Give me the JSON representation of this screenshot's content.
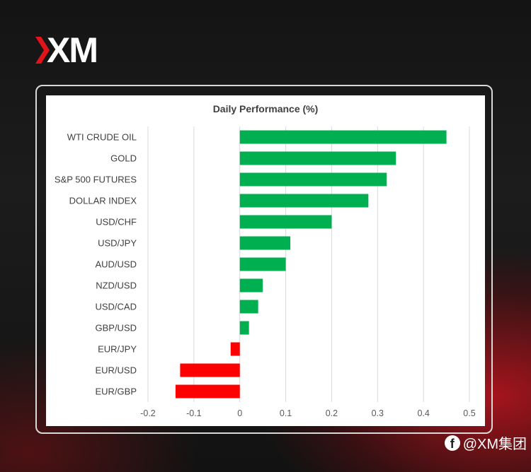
{
  "brand": {
    "logo_text": "XM",
    "handle": "@XM集团"
  },
  "icons": {
    "logo_mark": "xm-logo-icon",
    "social": "facebook-icon"
  },
  "colors": {
    "positive": "#00b050",
    "negative": "#ff0000"
  },
  "chart_data": {
    "type": "bar",
    "orientation": "horizontal",
    "title": "Daily Performance (%)",
    "categories": [
      "WTI CRUDE OIL",
      "GOLD",
      "S&P 500 FUTURES",
      "DOLLAR INDEX",
      "USD/CHF",
      "USD/JPY",
      "AUD/USD",
      "NZD/USD",
      "USD/CAD",
      "GBP/USD",
      "EUR/JPY",
      "EUR/USD",
      "EUR/GBP"
    ],
    "values": [
      0.45,
      0.34,
      0.32,
      0.28,
      0.2,
      0.11,
      0.1,
      0.05,
      0.04,
      0.02,
      -0.02,
      -0.13,
      -0.14
    ],
    "xlim": [
      -0.2,
      0.5
    ],
    "xticks": [
      "-0.2",
      "-0.1",
      "0",
      "0.1",
      "0.2",
      "0.3",
      "0.4",
      "0.5"
    ],
    "grid": "vertical"
  }
}
